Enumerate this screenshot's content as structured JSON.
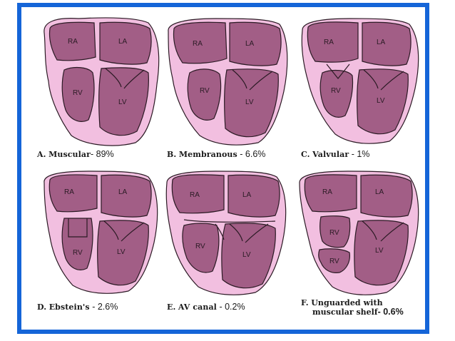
{
  "panels": [
    {
      "letter": "A.",
      "name": "Muscular",
      "pct": "- 89%",
      "chambers": [
        "RA",
        "LA",
        "RV",
        "LV"
      ]
    },
    {
      "letter": "B.",
      "name": "Membranous",
      "pct": "- 6.6%",
      "chambers": [
        "RA",
        "LA",
        "RV",
        "LV"
      ]
    },
    {
      "letter": "C.",
      "name": "Valvular",
      "pct": "- 1%",
      "chambers": [
        "RA",
        "LA",
        "RV",
        "LV"
      ]
    },
    {
      "letter": "D.",
      "name": "Ebstein's",
      "pct": "- 2.6%",
      "chambers": [
        "RA",
        "LA",
        "RV",
        "LV"
      ]
    },
    {
      "letter": "E.",
      "name": "AV canal",
      "pct": "- 0.2%",
      "chambers": [
        "RA",
        "LA",
        "RV",
        "LV"
      ]
    },
    {
      "letter": "F.",
      "name": "Unguarded with",
      "name2": "muscular shelf",
      "pct": "- 0.6%",
      "chambers": [
        "RA",
        "LA",
        "RV",
        "RV",
        "LV"
      ]
    }
  ],
  "colors": {
    "border": "#1565d8",
    "outer": "#f2bfe0",
    "chamber": "#a25e86",
    "outline": "#2b1a24"
  }
}
